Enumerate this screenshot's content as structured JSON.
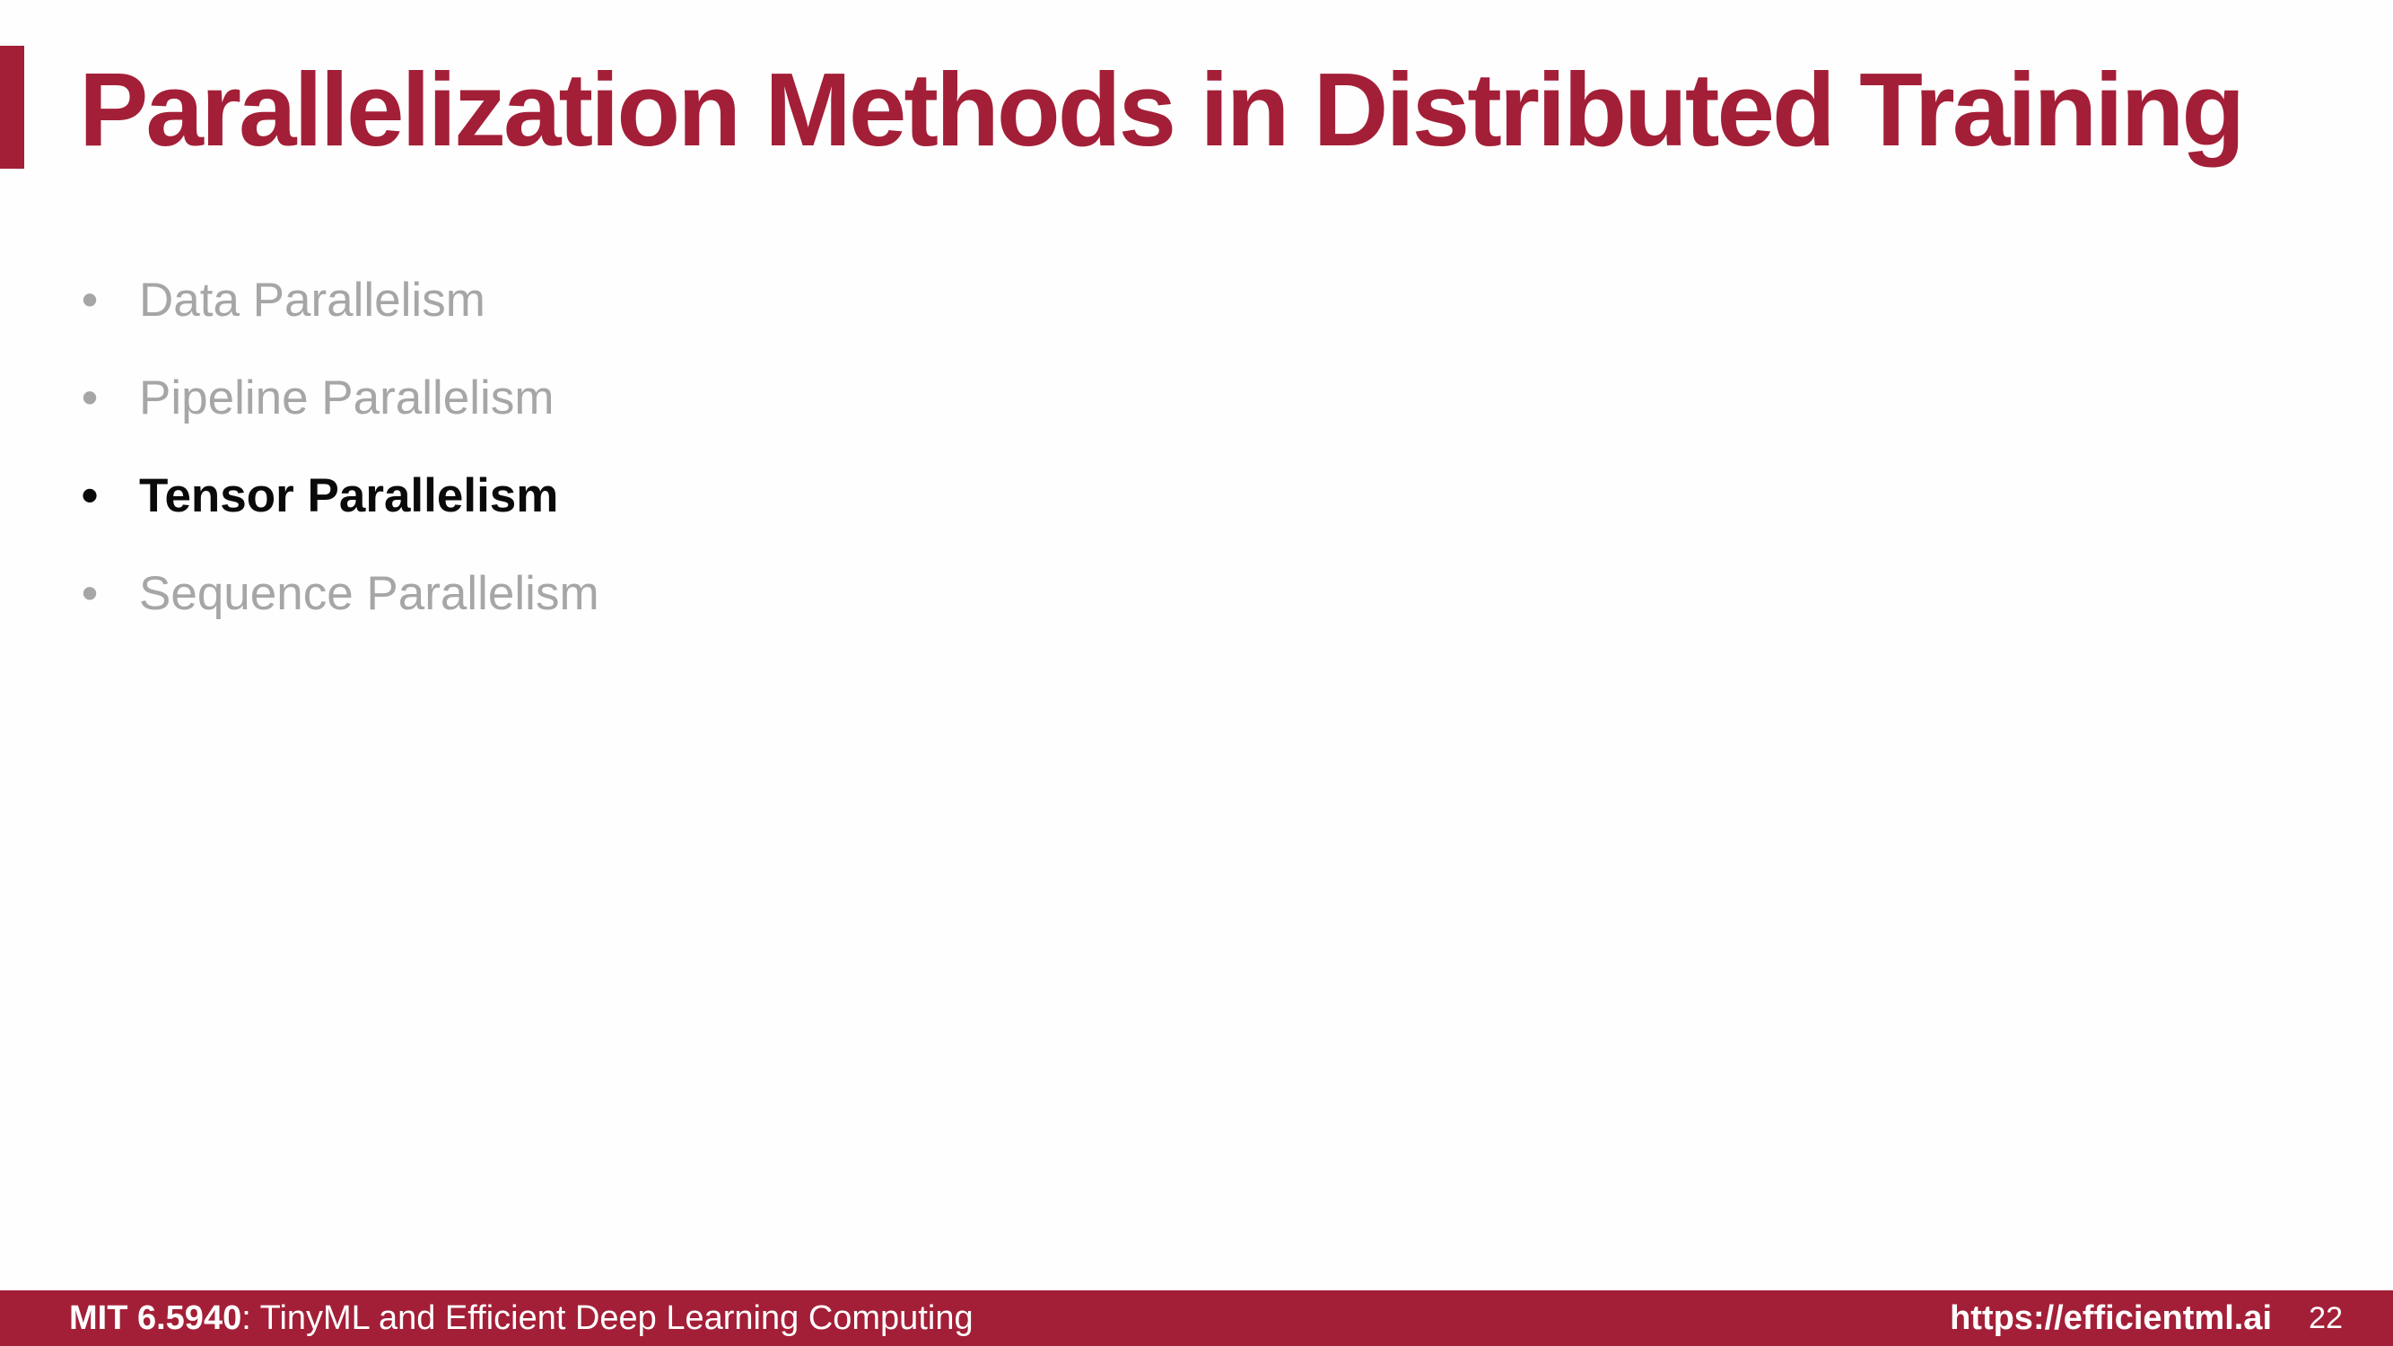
{
  "slide": {
    "title": "Parallelization Methods in Distributed Training",
    "accent_color": "#a31f37",
    "bullet_char": "•",
    "bullets": [
      {
        "label": "Data Parallelism",
        "state": "dimmed"
      },
      {
        "label": "Pipeline Parallelism",
        "state": "dimmed"
      },
      {
        "label": "Tensor Parallelism",
        "state": "active"
      },
      {
        "label": "Sequence Parallelism",
        "state": "dimmed"
      }
    ],
    "active_text_color": "#0a0a0a",
    "dimmed_text_color": "#a6a6a6"
  },
  "footer": {
    "course_code": "MIT 6.5940",
    "course_title": ": TinyML and Efficient Deep Learning Computing",
    "url": "https://efficientml.ai",
    "page_number": "22",
    "background_color": "#a31f37"
  }
}
